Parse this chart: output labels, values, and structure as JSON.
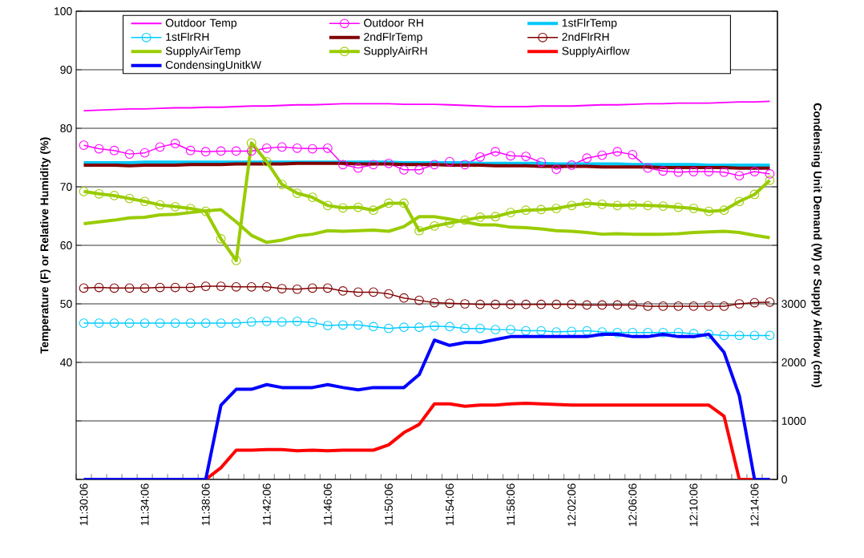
{
  "chart_data": {
    "type": "line",
    "ylabel": "Temperature (F) or Relative Humidity (%)",
    "y2label": "Condensing Unit Demand (W) or Supply Airflow (cfm)",
    "categories": [
      "11:30:06",
      null,
      null,
      null,
      "11:34:06",
      null,
      null,
      null,
      "11:38:06",
      null,
      null,
      null,
      "11:42:06",
      null,
      null,
      null,
      "11:46:06",
      null,
      null,
      null,
      "11:50:06",
      null,
      null,
      null,
      "11:54:06",
      null,
      null,
      null,
      "11:58:06",
      null,
      null,
      null,
      "12:02:06",
      null,
      null,
      null,
      "12:06:06",
      null,
      null,
      null,
      "12:10:06",
      null,
      null,
      null,
      "12:14:06",
      null
    ],
    "ylim": [
      20,
      100
    ],
    "yticks": [
      {
        "value": 20,
        "label": null
      },
      {
        "value": 30,
        "label": null
      },
      40,
      50,
      60,
      70,
      80,
      90,
      100
    ],
    "y2lim": [
      0,
      8000
    ],
    "y2ticks": [
      0,
      1000,
      2000,
      3000,
      {
        "value": 4000,
        "label": null
      },
      {
        "value": 5000,
        "label": null
      },
      {
        "value": 6000,
        "label": null
      },
      {
        "value": 7000,
        "label": null
      },
      {
        "value": 8000,
        "label": null
      }
    ],
    "grid": "y",
    "legend": "top",
    "series": [
      {
        "name": "Outdoor Temp",
        "color": "#ff00ff",
        "marker": "none",
        "values": [
          83.0,
          83.1,
          83.2,
          83.3,
          83.3,
          83.4,
          83.5,
          83.5,
          83.6,
          83.6,
          83.7,
          83.8,
          83.8,
          83.9,
          84.0,
          84.0,
          84.1,
          84.2,
          84.2,
          84.2,
          84.2,
          84.1,
          84.1,
          84.1,
          84.0,
          83.9,
          83.8,
          83.7,
          83.7,
          83.7,
          83.8,
          83.8,
          83.8,
          83.9,
          84.0,
          84.0,
          84.1,
          84.2,
          84.2,
          84.3,
          84.3,
          84.3,
          84.4,
          84.5,
          84.5,
          84.6
        ]
      },
      {
        "name": "Outdoor RH",
        "color": "#ff00ff",
        "marker": "circle",
        "values": [
          77.1,
          76.5,
          76.2,
          75.6,
          75.8,
          76.8,
          77.4,
          76.2,
          76.0,
          76.1,
          76.1,
          76.1,
          76.6,
          76.8,
          76.6,
          76.5,
          76.6,
          73.8,
          73.2,
          73.8,
          74.0,
          72.9,
          72.9,
          73.8,
          74.3,
          73.8,
          75.1,
          76.0,
          75.3,
          75.2,
          74.2,
          73.0,
          73.7,
          74.9,
          75.4,
          76.0,
          75.5,
          73.2,
          72.7,
          72.5,
          72.6,
          72.6,
          72.5,
          71.9,
          72.6,
          72.2
        ]
      },
      {
        "name": "1stFlrTemp",
        "color": "#00c8f8",
        "marker": "none",
        "values": [
          74.1,
          74.1,
          74.1,
          74.1,
          74.2,
          74.2,
          74.2,
          74.2,
          74.2,
          74.2,
          74.2,
          74.2,
          74.2,
          74.2,
          74.2,
          74.2,
          74.2,
          74.2,
          74.2,
          74.2,
          74.2,
          74.1,
          74.1,
          74.1,
          74.1,
          74.1,
          74.0,
          74.0,
          74.0,
          74.0,
          74.0,
          73.9,
          73.9,
          73.9,
          73.9,
          73.9,
          73.8,
          73.8,
          73.8,
          73.8,
          73.8,
          73.7,
          73.7,
          73.7,
          73.7,
          73.7
        ]
      },
      {
        "name": "1stFlrRH",
        "color": "#00ccff",
        "marker": "circle",
        "values": [
          46.7,
          46.7,
          46.7,
          46.7,
          46.7,
          46.7,
          46.7,
          46.7,
          46.7,
          46.7,
          46.7,
          46.9,
          47.0,
          46.9,
          47.0,
          46.8,
          46.3,
          46.4,
          46.4,
          46.1,
          45.8,
          46.0,
          46.0,
          46.2,
          46.1,
          45.8,
          45.8,
          45.6,
          45.6,
          45.4,
          45.4,
          45.2,
          45.3,
          45.4,
          45.2,
          45.1,
          45.1,
          45.1,
          45.1,
          45.1,
          44.9,
          44.8,
          44.6,
          44.6,
          44.6,
          44.6
        ]
      },
      {
        "name": "2ndFlrTemp",
        "color": "#800000",
        "marker": "none",
        "values": [
          73.7,
          73.7,
          73.7,
          73.6,
          73.7,
          73.7,
          73.7,
          73.8,
          73.8,
          73.8,
          73.9,
          73.9,
          73.9,
          73.9,
          74.0,
          74.0,
          74.0,
          74.0,
          73.9,
          73.9,
          73.9,
          73.8,
          73.8,
          73.8,
          73.7,
          73.7,
          73.7,
          73.6,
          73.6,
          73.6,
          73.5,
          73.5,
          73.5,
          73.5,
          73.4,
          73.4,
          73.4,
          73.4,
          73.3,
          73.3,
          73.3,
          73.3,
          73.3,
          73.2,
          73.2,
          73.2
        ]
      },
      {
        "name": "2ndFlrRH",
        "color": "#800000",
        "marker": "circle",
        "values": [
          52.7,
          52.8,
          52.7,
          52.7,
          52.7,
          52.8,
          52.8,
          52.8,
          53.0,
          53.0,
          52.9,
          52.9,
          52.9,
          52.6,
          52.5,
          52.7,
          52.7,
          52.2,
          52.0,
          52.0,
          51.7,
          51.0,
          50.6,
          50.2,
          50.1,
          50.0,
          49.9,
          49.9,
          49.9,
          49.9,
          49.9,
          49.9,
          49.9,
          49.8,
          49.8,
          49.8,
          49.8,
          49.6,
          49.6,
          49.6,
          49.6,
          49.6,
          49.6,
          50.0,
          50.2,
          50.3
        ]
      },
      {
        "name": "SupplyAirTemp",
        "color": "#99cc00",
        "marker": "none",
        "values": [
          63.7,
          64.0,
          64.3,
          64.7,
          64.8,
          65.2,
          65.3,
          65.6,
          65.9,
          66.1,
          64.0,
          61.7,
          60.5,
          60.9,
          61.6,
          61.9,
          62.5,
          62.4,
          62.5,
          62.6,
          62.4,
          63.2,
          64.9,
          64.9,
          64.5,
          64.0,
          63.5,
          63.5,
          63.1,
          63.0,
          62.8,
          62.5,
          62.4,
          62.2,
          61.9,
          62.0,
          61.9,
          61.9,
          61.9,
          62.0,
          62.2,
          62.3,
          62.4,
          62.2,
          61.7,
          61.3
        ]
      },
      {
        "name": "SupplyAirRH",
        "color": "#99cc00",
        "marker": "circle",
        "values": [
          69.2,
          68.8,
          68.5,
          68.0,
          67.5,
          66.9,
          66.6,
          66.3,
          65.8,
          61.1,
          57.4,
          77.5,
          74.3,
          70.4,
          68.9,
          68.2,
          66.8,
          66.4,
          66.5,
          66.0,
          67.2,
          67.2,
          62.5,
          63.3,
          63.8,
          64.3,
          64.8,
          64.9,
          65.6,
          66.0,
          66.1,
          66.3,
          66.8,
          67.2,
          67.0,
          66.8,
          66.9,
          66.8,
          66.7,
          66.5,
          66.3,
          65.8,
          66.0,
          67.5,
          68.7,
          71.1
        ]
      },
      {
        "name": "SupplyAirflow",
        "color": "#ff0000",
        "marker": "none",
        "axis": "y2",
        "values": [
          null,
          null,
          null,
          null,
          null,
          null,
          null,
          0,
          0,
          200,
          500,
          500,
          510,
          510,
          490,
          500,
          490,
          500,
          500,
          500,
          590,
          800,
          940,
          1290,
          1290,
          1250,
          1270,
          1270,
          1290,
          1300,
          1290,
          1280,
          1270,
          1270,
          1270,
          1270,
          1270,
          1270,
          1270,
          1270,
          1270,
          1270,
          1080,
          0,
          0,
          0
        ]
      },
      {
        "name": "CondensingUnitkW",
        "color": "#0000ff",
        "marker": "none",
        "axis": "y2",
        "values": [
          0,
          0,
          0,
          0,
          0,
          0,
          0,
          0,
          0,
          1270,
          1540,
          1540,
          1620,
          1570,
          1570,
          1570,
          1620,
          1570,
          1530,
          1570,
          1570,
          1570,
          1790,
          2380,
          2290,
          2340,
          2340,
          2390,
          2440,
          2440,
          2440,
          2440,
          2440,
          2440,
          2480,
          2480,
          2440,
          2440,
          2480,
          2440,
          2440,
          2480,
          2170,
          1430,
          0,
          0
        ]
      }
    ]
  }
}
